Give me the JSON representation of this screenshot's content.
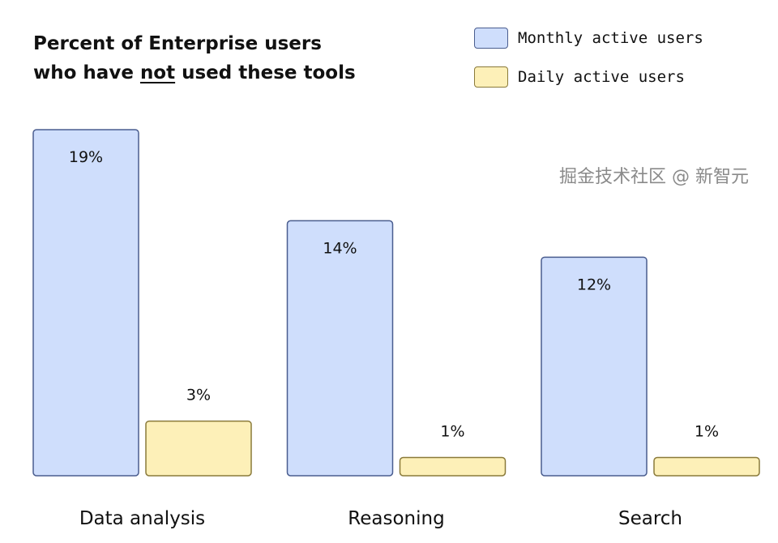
{
  "chart_data": {
    "type": "bar",
    "title_parts": [
      "Percent of Enterprise users",
      "who have ",
      "not",
      " used these tools"
    ],
    "categories": [
      "Data analysis",
      "Reasoning",
      "Search"
    ],
    "series": [
      {
        "name": "Monthly active users",
        "values": [
          19,
          14,
          12
        ],
        "labels": [
          "19%",
          "14%",
          "12%"
        ],
        "color": "#cfdefc",
        "border": "#4a5d8f"
      },
      {
        "name": "Daily active users",
        "values": [
          3,
          1,
          1
        ],
        "labels": [
          "3%",
          "1%",
          "1%"
        ],
        "color": "#fdf0b8",
        "border": "#8a7a3a"
      }
    ],
    "ylim": [
      0,
      19
    ],
    "grid": false,
    "legend": "top-right"
  },
  "watermark": "掘金技术社区 @ 新智元"
}
